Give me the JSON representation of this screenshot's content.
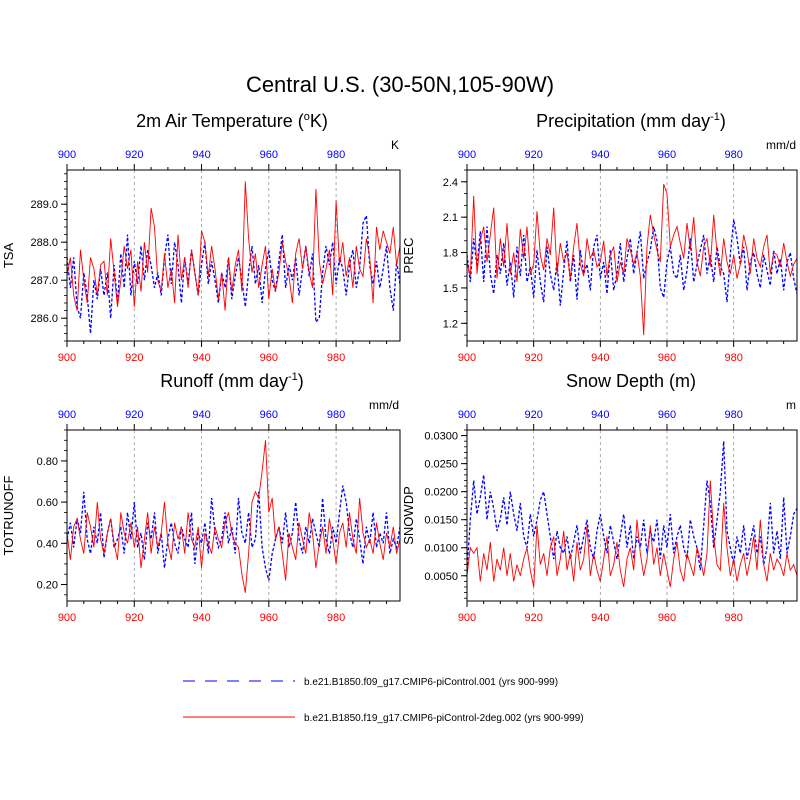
{
  "figure": {
    "title": "Central U.S. (30-50N,105-90W)",
    "legend": [
      {
        "label": "b.e21.B1850.f09_g17.CMIP6-piControl.001 (yrs 900-999)",
        "color": "#0000ff",
        "style": "dashed"
      },
      {
        "label": "b.e21.B1850.f19_g17.CMIP6-piControl-2deg.002 (yrs 900-999)",
        "color": "#ff0000",
        "style": "solid"
      }
    ],
    "top_ticks": [
      "900",
      "920",
      "940",
      "960",
      "980"
    ],
    "bottom_ticks": [
      "900",
      "920",
      "940",
      "960",
      "980"
    ]
  },
  "chart_data": [
    {
      "type": "line",
      "title_main": "2m Air Temperature (",
      "title_sup": "o",
      "title_end": "K)",
      "unit": "K",
      "ylabel": "TSA",
      "xlim": [
        900,
        999
      ],
      "ylim": [
        285.4,
        289.9
      ],
      "yticks": [
        286.0,
        287.0,
        288.0,
        289.0
      ],
      "ytick_labels": [
        "286.0",
        "287.0",
        "288.0",
        "289.0"
      ],
      "minor_step": 0.2,
      "x_start": 900,
      "series": [
        {
          "color": "#0000ff",
          "dash": "3,2",
          "values": [
            287.6,
            286.8,
            287.6,
            286.3,
            286.0,
            287.2,
            286.6,
            285.6,
            287.0,
            286.5,
            287.3,
            286.6,
            287.2,
            286.0,
            287.4,
            286.4,
            287.7,
            286.8,
            288.2,
            286.6,
            287.5,
            286.9,
            287.9,
            287.0,
            287.8,
            287.4,
            286.8,
            287.2,
            286.6,
            287.6,
            288.2,
            286.9,
            288.0,
            287.4,
            286.4,
            287.6,
            286.9,
            287.8,
            287.2,
            286.6,
            287.4,
            288.0,
            286.9,
            287.5,
            287.0,
            286.4,
            287.2,
            286.8,
            287.6,
            286.5,
            287.1,
            287.6,
            287.0,
            286.3,
            287.2,
            287.9,
            286.9,
            287.4,
            286.4,
            287.3,
            287.8,
            287.0,
            286.7,
            287.5,
            288.2,
            286.8,
            287.4,
            287.0,
            287.6,
            286.6,
            287.3,
            287.9,
            287.1,
            287.7,
            285.9,
            286.0,
            287.2,
            287.9,
            287.4,
            288.0,
            286.9,
            287.6,
            287.3,
            286.6,
            287.4,
            287.8,
            286.8,
            287.3,
            288.5,
            288.7,
            287.4,
            286.9,
            287.5,
            286.8,
            287.3,
            287.9,
            286.8,
            286.2,
            287.5,
            286.9
          ]
        },
        {
          "color": "#ff0000",
          "dash": "",
          "values": [
            287.1,
            287.6,
            286.6,
            286.2,
            287.8,
            287.0,
            286.4,
            287.6,
            287.3,
            286.6,
            287.4,
            287.5,
            286.6,
            288.1,
            287.2,
            286.3,
            287.0,
            287.9,
            287.3,
            287.8,
            286.3,
            287.5,
            286.7,
            288.0,
            287.2,
            288.9,
            288.4,
            287.0,
            286.7,
            287.7,
            286.8,
            287.3,
            286.4,
            288.2,
            287.0,
            287.6,
            286.8,
            287.8,
            287.2,
            286.6,
            288.3,
            288.0,
            287.1,
            287.9,
            287.3,
            286.5,
            287.2,
            286.2,
            287.6,
            286.7,
            287.4,
            287.8,
            286.7,
            289.6,
            288.1,
            287.2,
            287.7,
            286.8,
            287.4,
            287.9,
            286.5,
            287.3,
            286.7,
            287.2,
            288.0,
            287.5,
            287.1,
            286.4,
            287.7,
            288.1,
            287.3,
            287.9,
            287.2,
            286.8,
            289.4,
            287.5,
            286.9,
            287.3,
            287.8,
            286.6,
            289.1,
            287.4,
            288.0,
            287.1,
            287.6,
            286.8,
            287.9,
            287.3,
            287.1,
            288.1,
            287.6,
            286.4,
            288.4,
            287.8,
            288.3,
            288.0,
            287.7,
            288.4,
            287.4,
            287.9
          ]
        }
      ]
    },
    {
      "type": "line",
      "title_main": "Precipitation (mm day",
      "title_sup": "-1",
      "title_end": ")",
      "unit": "mm/d",
      "ylabel": "PREC",
      "xlim": [
        900,
        999
      ],
      "ylim": [
        1.05,
        2.5
      ],
      "yticks": [
        1.2,
        1.5,
        1.8,
        2.1,
        2.4
      ],
      "ytick_labels": [
        "1.2",
        "1.5",
        "1.8",
        "2.1",
        "2.4"
      ],
      "minor_step": 0.1,
      "x_start": 900,
      "series": [
        {
          "color": "#0000ff",
          "dash": "3,2",
          "values": [
            1.78,
            1.55,
            1.92,
            1.68,
            1.98,
            1.55,
            2.02,
            1.62,
            1.45,
            1.78,
            1.62,
            1.88,
            1.52,
            1.72,
            1.42,
            1.85,
            1.6,
            1.95,
            1.55,
            1.68,
            1.42,
            1.82,
            1.55,
            1.38,
            1.85,
            1.62,
            1.48,
            1.72,
            1.35,
            1.65,
            1.9,
            1.55,
            1.78,
            1.4,
            1.82,
            1.62,
            1.7,
            1.48,
            1.85,
            1.95,
            1.58,
            1.72,
            1.45,
            1.82,
            1.48,
            1.62,
            1.88,
            1.55,
            1.75,
            1.92,
            1.62,
            1.8,
            1.98,
            1.58,
            1.72,
            1.82,
            2.02,
            1.9,
            1.5,
            1.42,
            1.72,
            1.85,
            1.62,
            1.58,
            1.78,
            1.48,
            1.65,
            1.92,
            1.55,
            1.7,
            1.82,
            1.95,
            1.62,
            1.78,
            1.55,
            1.85,
            1.68,
            1.62,
            1.38,
            1.78,
            2.08,
            1.92,
            1.7,
            1.85,
            1.48,
            1.72,
            1.8,
            1.62,
            1.5,
            1.78,
            1.65,
            1.52,
            1.82,
            1.62,
            1.75,
            1.48,
            1.72,
            1.8,
            1.58,
            1.45
          ]
        },
        {
          "color": "#ff0000",
          "dash": "",
          "values": [
            1.72,
            1.6,
            2.28,
            1.62,
            1.9,
            2.02,
            1.72,
            1.95,
            2.18,
            1.58,
            1.92,
            1.68,
            2.05,
            1.62,
            1.8,
            1.55,
            2.0,
            1.75,
            2.02,
            1.62,
            1.7,
            2.15,
            1.78,
            1.65,
            1.92,
            1.78,
            2.18,
            1.62,
            1.88,
            1.72,
            1.8,
            1.58,
            1.85,
            2.05,
            1.7,
            1.6,
            1.92,
            1.75,
            1.82,
            1.68,
            1.72,
            1.9,
            1.6,
            1.78,
            1.85,
            1.55,
            1.72,
            1.62,
            1.92,
            1.82,
            1.7,
            1.8,
            1.6,
            1.1,
            1.85,
            2.12,
            1.95,
            1.82,
            1.72,
            2.38,
            2.3,
            1.85,
            1.95,
            2.02,
            1.88,
            1.75,
            2.05,
            1.82,
            2.1,
            1.72,
            1.6,
            1.85,
            1.92,
            1.68,
            2.12,
            1.8,
            1.6,
            1.92,
            1.72,
            1.62,
            1.78,
            1.58,
            1.7,
            1.95,
            1.82,
            1.62,
            1.92,
            1.75,
            1.68,
            1.85,
            1.95,
            1.62,
            1.8,
            1.78,
            1.68,
            1.88,
            1.72,
            1.6,
            1.7,
            1.75
          ]
        }
      ]
    },
    {
      "type": "line",
      "title_main": "Runoff (mm day",
      "title_sup": "-1",
      "title_end": ")",
      "unit": "mm/d",
      "ylabel": "TOTRUNOFF",
      "xlim": [
        900,
        999
      ],
      "ylim": [
        0.12,
        0.95
      ],
      "yticks": [
        0.2,
        0.4,
        0.6,
        0.8
      ],
      "ytick_labels": [
        "0.20",
        "0.40",
        "0.60",
        "0.80"
      ],
      "minor_step": 0.05,
      "x_start": 900,
      "series": [
        {
          "color": "#0000ff",
          "dash": "3,2",
          "values": [
            0.42,
            0.5,
            0.38,
            0.52,
            0.45,
            0.65,
            0.42,
            0.35,
            0.48,
            0.4,
            0.55,
            0.33,
            0.45,
            0.52,
            0.38,
            0.42,
            0.48,
            0.35,
            0.55,
            0.42,
            0.6,
            0.38,
            0.45,
            0.32,
            0.5,
            0.42,
            0.55,
            0.35,
            0.45,
            0.28,
            0.42,
            0.5,
            0.4,
            0.35,
            0.48,
            0.42,
            0.38,
            0.55,
            0.3,
            0.45,
            0.4,
            0.5,
            0.35,
            0.62,
            0.45,
            0.38,
            0.42,
            0.55,
            0.4,
            0.48,
            0.35,
            0.62,
            0.45,
            0.4,
            0.55,
            0.38,
            0.42,
            0.65,
            0.38,
            0.28,
            0.22,
            0.35,
            0.42,
            0.48,
            0.4,
            0.55,
            0.38,
            0.45,
            0.6,
            0.42,
            0.35,
            0.48,
            0.4,
            0.52,
            0.45,
            0.38,
            0.62,
            0.42,
            0.35,
            0.48,
            0.4,
            0.55,
            0.68,
            0.6,
            0.45,
            0.38,
            0.52,
            0.42,
            0.3,
            0.48,
            0.4,
            0.55,
            0.38,
            0.45,
            0.4,
            0.55,
            0.35,
            0.42,
            0.38,
            0.48
          ]
        },
        {
          "color": "#ff0000",
          "dash": "",
          "values": [
            0.45,
            0.32,
            0.48,
            0.52,
            0.42,
            0.35,
            0.55,
            0.48,
            0.38,
            0.6,
            0.42,
            0.35,
            0.45,
            0.52,
            0.4,
            0.32,
            0.55,
            0.45,
            0.4,
            0.5,
            0.38,
            0.48,
            0.28,
            0.42,
            0.55,
            0.35,
            0.48,
            0.38,
            0.45,
            0.6,
            0.4,
            0.32,
            0.5,
            0.42,
            0.48,
            0.35,
            0.55,
            0.42,
            0.38,
            0.48,
            0.28,
            0.45,
            0.4,
            0.35,
            0.48,
            0.42,
            0.38,
            0.5,
            0.55,
            0.45,
            0.4,
            0.38,
            0.25,
            0.16,
            0.35,
            0.6,
            0.65,
            0.62,
            0.75,
            0.9,
            0.55,
            0.62,
            0.42,
            0.48,
            0.35,
            0.22,
            0.45,
            0.38,
            0.32,
            0.5,
            0.42,
            0.35,
            0.55,
            0.45,
            0.28,
            0.4,
            0.48,
            0.35,
            0.52,
            0.42,
            0.3,
            0.45,
            0.5,
            0.38,
            0.55,
            0.42,
            0.35,
            0.62,
            0.45,
            0.38,
            0.42,
            0.35,
            0.5,
            0.4,
            0.32,
            0.45,
            0.38,
            0.48,
            0.35,
            0.42
          ]
        }
      ]
    },
    {
      "type": "line",
      "title_main": "Snow Depth (m)",
      "title_sup": "",
      "title_end": "",
      "unit": "m",
      "ylabel": "SNOWDP",
      "xlim": [
        900,
        999
      ],
      "ylim": [
        0.0005,
        0.031
      ],
      "yticks": [
        0.005,
        0.01,
        0.015,
        0.02,
        0.025,
        0.03
      ],
      "ytick_labels": [
        "0.0050",
        "0.0100",
        "0.0150",
        "0.0200",
        "0.0250",
        "0.0300"
      ],
      "minor_step": 0.001,
      "x_start": 900,
      "series": [
        {
          "color": "#0000ff",
          "dash": "3,2",
          "values": [
            0.006,
            0.015,
            0.022,
            0.016,
            0.019,
            0.023,
            0.015,
            0.02,
            0.017,
            0.013,
            0.015,
            0.019,
            0.014,
            0.02,
            0.016,
            0.013,
            0.018,
            0.012,
            0.01,
            0.016,
            0.012,
            0.015,
            0.0185,
            0.02,
            0.016,
            0.012,
            0.008,
            0.013,
            0.01,
            0.009,
            0.012,
            0.008,
            0.011,
            0.014,
            0.009,
            0.012,
            0.015,
            0.01,
            0.008,
            0.013,
            0.016,
            0.012,
            0.009,
            0.014,
            0.011,
            0.008,
            0.012,
            0.016,
            0.01,
            0.014,
            0.008,
            0.012,
            0.01,
            0.015,
            0.009,
            0.013,
            0.011,
            0.015,
            0.008,
            0.014,
            0.01,
            0.016,
            0.009,
            0.012,
            0.014,
            0.01,
            0.008,
            0.015,
            0.012,
            0.01,
            0.006,
            0.014,
            0.022,
            0.018,
            0.01,
            0.015,
            0.02,
            0.029,
            0.013,
            0.01,
            0.007,
            0.012,
            0.009,
            0.014,
            0.008,
            0.011,
            0.014,
            0.009,
            0.012,
            0.007,
            0.01,
            0.018,
            0.009,
            0.013,
            0.008,
            0.019,
            0.009,
            0.012,
            0.016,
            0.017
          ]
        },
        {
          "color": "#ff0000",
          "dash": "",
          "values": [
            0.005,
            0.01,
            0.009,
            0.01,
            0.004,
            0.009,
            0.006,
            0.011,
            0.004,
            0.008,
            0.006,
            0.01,
            0.005,
            0.009,
            0.004,
            0.007,
            0.005,
            0.008,
            0.01,
            0.006,
            0.003,
            0.014,
            0.007,
            0.009,
            0.005,
            0.01,
            0.012,
            0.005,
            0.008,
            0.013,
            0.006,
            0.009,
            0.004,
            0.011,
            0.006,
            0.008,
            0.014,
            0.005,
            0.009,
            0.006,
            0.004,
            0.008,
            0.012,
            0.005,
            0.007,
            0.011,
            0.006,
            0.003,
            0.008,
            0.01,
            0.006,
            0.015,
            0.009,
            0.005,
            0.008,
            0.014,
            0.007,
            0.01,
            0.005,
            0.009,
            0.006,
            0.003,
            0.008,
            0.011,
            0.006,
            0.004,
            0.009,
            0.007,
            0.005,
            0.01,
            0.008,
            0.005,
            0.009,
            0.022,
            0.012,
            0.007,
            0.006,
            0.018,
            0.01,
            0.005,
            0.008,
            0.004,
            0.007,
            0.009,
            0.005,
            0.008,
            0.012,
            0.006,
            0.015,
            0.007,
            0.004,
            0.009,
            0.006,
            0.008,
            0.007,
            0.005,
            0.009,
            0.006,
            0.007,
            0.005
          ]
        }
      ]
    }
  ]
}
